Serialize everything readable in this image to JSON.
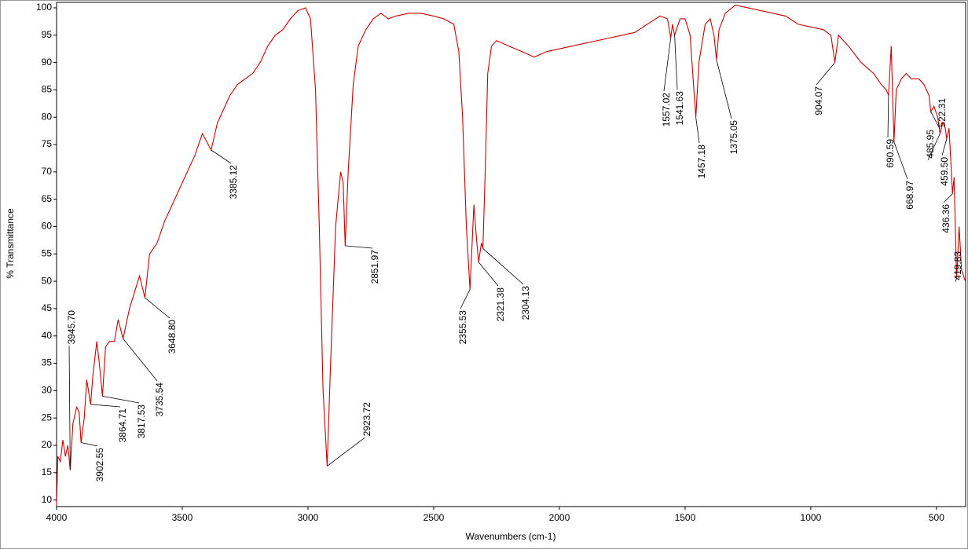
{
  "chart_data": {
    "type": "line",
    "xlabel": "Wavenumbers (cm-1)",
    "ylabel": "% Transmittance",
    "xlim": [
      4000,
      384
    ],
    "ylim": [
      8.8,
      101.0
    ],
    "xticks": [
      4000,
      3500,
      3000,
      2500,
      2000,
      1500,
      1000,
      500
    ],
    "yticks": [
      10,
      15,
      20,
      25,
      30,
      35,
      40,
      45,
      50,
      55,
      60,
      65,
      70,
      75,
      80,
      85,
      90,
      95,
      100
    ],
    "color": "#cc0000",
    "x": [
      4000,
      3995,
      3985,
      3975,
      3965,
      3955,
      3945.7,
      3935,
      3920,
      3910,
      3902.55,
      3890,
      3880,
      3864.71,
      3855,
      3840,
      3830,
      3817.53,
      3805,
      3790,
      3770,
      3755,
      3735.54,
      3710,
      3690,
      3670,
      3648.8,
      3630,
      3600,
      3570,
      3540,
      3510,
      3480,
      3450,
      3420,
      3385.12,
      3360,
      3340,
      3310,
      3280,
      3250,
      3220,
      3190,
      3160,
      3130,
      3100,
      3070,
      3040,
      3010,
      2990,
      2970,
      2955,
      2940,
      2923.72,
      2910,
      2890,
      2870,
      2860,
      2851.97,
      2840,
      2820,
      2800,
      2770,
      2740,
      2710,
      2680,
      2650,
      2600,
      2550,
      2500,
      2460,
      2420,
      2400,
      2385,
      2370,
      2355.53,
      2340,
      2330,
      2321.38,
      2310,
      2304.13,
      2295,
      2285,
      2270,
      2250,
      2200,
      2150,
      2100,
      2050,
      2000,
      1950,
      1900,
      1850,
      1800,
      1750,
      1700,
      1650,
      1600,
      1570,
      1557.02,
      1550,
      1541.63,
      1520,
      1500,
      1480,
      1465,
      1457.18,
      1445,
      1420,
      1400,
      1385,
      1375.05,
      1365,
      1340,
      1300,
      1250,
      1200,
      1150,
      1100,
      1050,
      1000,
      950,
      920,
      904.07,
      890,
      850,
      800,
      750,
      720,
      700,
      690.59,
      680,
      668.97,
      660,
      640,
      620,
      600,
      570,
      550,
      530,
      522.31,
      510,
      495,
      485.95,
      475,
      465,
      459.5,
      450,
      443,
      436.36,
      430,
      425,
      419.83,
      410,
      400,
      385
    ],
    "values": [
      9,
      18,
      17,
      21,
      18,
      20,
      15.5,
      24,
      27,
      26,
      20.5,
      25,
      32,
      27.5,
      33,
      39,
      35,
      29,
      38,
      39,
      39,
      43,
      39.5,
      45,
      48,
      51,
      47,
      55,
      57,
      61,
      64,
      67,
      70,
      73,
      77,
      74,
      79,
      81,
      84,
      86,
      87,
      88,
      90,
      93,
      95,
      96,
      98,
      99.5,
      100,
      98,
      85,
      60,
      30,
      16.2,
      35,
      60,
      70,
      68,
      56.5,
      70,
      86,
      93,
      96,
      98,
      99,
      98,
      98.5,
      99,
      99,
      98.5,
      98,
      97,
      92,
      80,
      60,
      48.5,
      64,
      58,
      53.5,
      57,
      56,
      70,
      88,
      93,
      94,
      93,
      92,
      91,
      92,
      92.5,
      93,
      93.5,
      94,
      94.5,
      95,
      95.5,
      97,
      98.5,
      98,
      94.5,
      97,
      95,
      98,
      98,
      95,
      85,
      80,
      90,
      97,
      98,
      95,
      90.5,
      96,
      99,
      100.5,
      100,
      99.5,
      99,
      98.5,
      97,
      96.5,
      96,
      95,
      90,
      95,
      93,
      90,
      88,
      86,
      85,
      84,
      93,
      75.5,
      85,
      87,
      88,
      87,
      87,
      86,
      84,
      81,
      82,
      80,
      77,
      79,
      78,
      76,
      78,
      72,
      66,
      69,
      60,
      50.5,
      60,
      52,
      50
    ],
    "annotations": [
      {
        "label": "3945.70",
        "x": 3945.7,
        "y": 15.5
      },
      {
        "label": "3902.55",
        "x": 3902.55,
        "y": 20.5
      },
      {
        "label": "3864.71",
        "x": 3864.71,
        "y": 27.5
      },
      {
        "label": "3817.53",
        "x": 3817.53,
        "y": 29
      },
      {
        "label": "3735.54",
        "x": 3735.54,
        "y": 39.5
      },
      {
        "label": "3648.80",
        "x": 3648.8,
        "y": 47
      },
      {
        "label": "3385.12",
        "x": 3385.12,
        "y": 74
      },
      {
        "label": "2923.72",
        "x": 2923.72,
        "y": 16.2
      },
      {
        "label": "2851.97",
        "x": 2851.97,
        "y": 56.5
      },
      {
        "label": "2355.53",
        "x": 2355.53,
        "y": 48.5
      },
      {
        "label": "2321.38",
        "x": 2321.38,
        "y": 53.5
      },
      {
        "label": "2304.13",
        "x": 2304.13,
        "y": 56
      },
      {
        "label": "1557.02",
        "x": 1557.02,
        "y": 94.5
      },
      {
        "label": "1541.63",
        "x": 1541.63,
        "y": 95
      },
      {
        "label": "1457.18",
        "x": 1457.18,
        "y": 80
      },
      {
        "label": "1375.05",
        "x": 1375.05,
        "y": 90.5
      },
      {
        "label": "904.07",
        "x": 904.07,
        "y": 90
      },
      {
        "label": "690.59",
        "x": 690.59,
        "y": 84
      },
      {
        "label": "668.97",
        "x": 668.97,
        "y": 75.5
      },
      {
        "label": "522.31",
        "x": 522.31,
        "y": 81
      },
      {
        "label": "485.95",
        "x": 485.95,
        "y": 77
      },
      {
        "label": "459.50",
        "x": 459.5,
        "y": 76
      },
      {
        "label": "436.36",
        "x": 436.36,
        "y": 66
      },
      {
        "label": "419.83",
        "x": 419.83,
        "y": 50.5
      }
    ]
  }
}
